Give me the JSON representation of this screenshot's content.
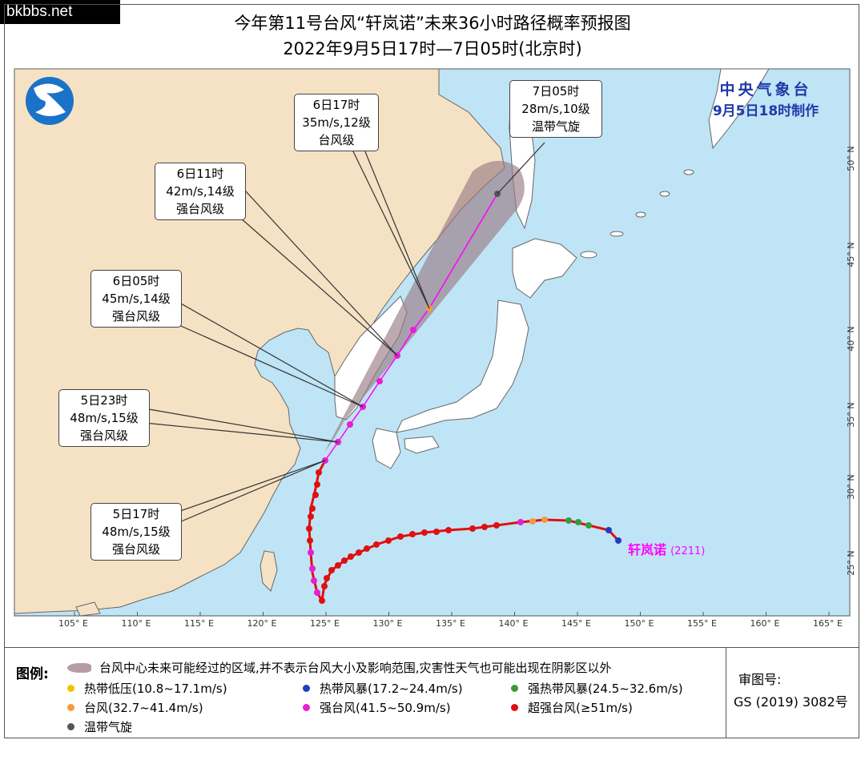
{
  "watermark": "bkbbs.net",
  "title_line1": "今年第11号台风“轩岚诺”未来36小时路径概率预报图",
  "title_line2": "2022年9月5日17时—7日05时(北京时)",
  "agency": {
    "name": "中央气象台",
    "made": "9月5日18时制作"
  },
  "storm_label": "轩岚诺",
  "storm_code": "(2211)",
  "forecasts": [
    {
      "time": "7日05时",
      "wind": "28m/s,10级",
      "level": "温带气旋"
    },
    {
      "time": "6日17时",
      "wind": "35m/s,12级",
      "level": "台风级"
    },
    {
      "time": "6日11时",
      "wind": "42m/s,14级",
      "level": "强台风级"
    },
    {
      "time": "6日05时",
      "wind": "45m/s,14级",
      "level": "强台风级"
    },
    {
      "time": "5日23时",
      "wind": "48m/s,15级",
      "level": "强台风级"
    },
    {
      "time": "5日17时",
      "wind": "48m/s,15级",
      "level": "强台风级"
    }
  ],
  "lon_ticks": [
    "105° E",
    "110° E",
    "115° E",
    "120° E",
    "125° E",
    "130° E",
    "135° E",
    "140° E",
    "145° E",
    "150° E",
    "155° E",
    "160° E",
    "165° E"
  ],
  "lat_ticks": [
    "50° N",
    "45° N",
    "40° N",
    "35° N",
    "30° N",
    "25° N"
  ],
  "map_inner_label": "40",
  "legend": {
    "title": "图例:",
    "cone_text": "台风中心未来可能经过的区域,并不表示台风大小及影响范围,灾害性天气也可能出现在阴影区以外",
    "items": [
      {
        "label": "热带低压(10.8~17.1m/s)",
        "color": "#f2c200"
      },
      {
        "label": "热带风暴(17.2~24.4m/s)",
        "color": "#1f3fbf"
      },
      {
        "label": "强热带风暴(24.5~32.6m/s)",
        "color": "#3a9a3a"
      },
      {
        "label": "台风(32.7~41.4m/s)",
        "color": "#f59a3c"
      },
      {
        "label": "强台风(41.5~50.9m/s)",
        "color": "#e81ed0"
      },
      {
        "label": "超强台风(≥51m/s)",
        "color": "#e01010"
      },
      {
        "label": "温带气旋",
        "color": "#555555"
      }
    ],
    "approval_title": "审图号:",
    "approval_code": "GS (2019) 3082号"
  },
  "colors": {
    "sea": "#bfe4f6",
    "land": "#f5e2c4",
    "track": "#ff00ff",
    "cone": "#9a7b86"
  }
}
